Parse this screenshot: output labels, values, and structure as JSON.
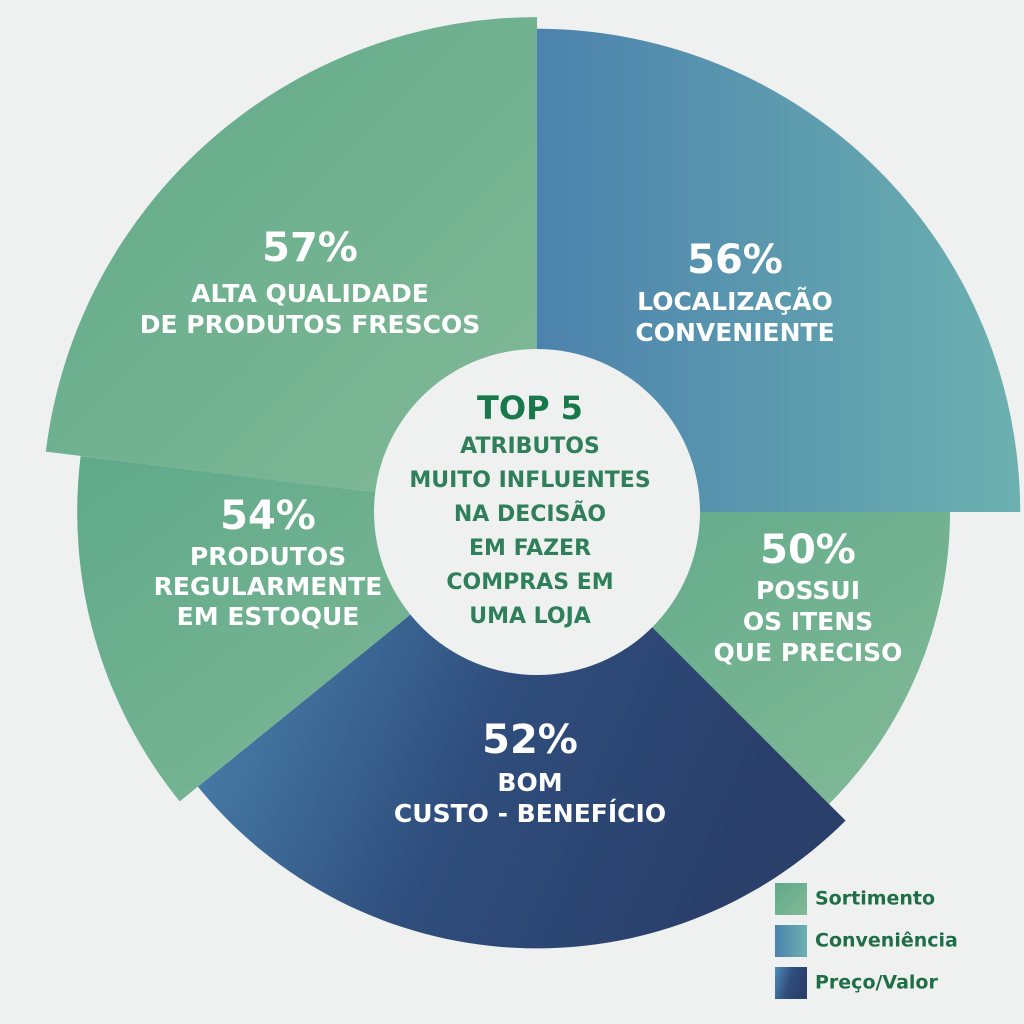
{
  "chart_data": {
    "type": "polar",
    "title": "TOP 5",
    "subtitle": [
      "ATRIBUTOS",
      "MUITO INFLUENTES",
      "NA DECISÃO",
      "EM FAZER",
      "COMPRAS EM",
      "UMA LOJA"
    ],
    "categories": [
      [
        "LOCALIZAÇÃO",
        "CONVENIENTE"
      ],
      [
        "POSSUI",
        "OS ITENS",
        "QUE PRECISO"
      ],
      [
        "BOM",
        "CUSTO - BENEFÍCIO"
      ],
      [
        "PRODUTOS",
        "REGULARMENTE",
        "EM ESTOQUE"
      ],
      [
        "ALTA QUALIDADE",
        "DE PRODUTOS FRESCOS"
      ]
    ],
    "values": [
      56,
      50,
      52,
      54,
      57
    ],
    "value_labels": [
      "56%",
      "50%",
      "52%",
      "54%",
      "57%"
    ],
    "category_groups": [
      "Conveniência",
      "Sortimento",
      "Preço/Valor",
      "Sortimento",
      "Sortimento"
    ],
    "series": [
      {
        "name": "Sortimento",
        "color": "#6aae8e"
      },
      {
        "name": "Conveniência",
        "color": "#5c9fb2"
      },
      {
        "name": "Preço/Valor",
        "color": "#2e4a78"
      }
    ]
  }
}
